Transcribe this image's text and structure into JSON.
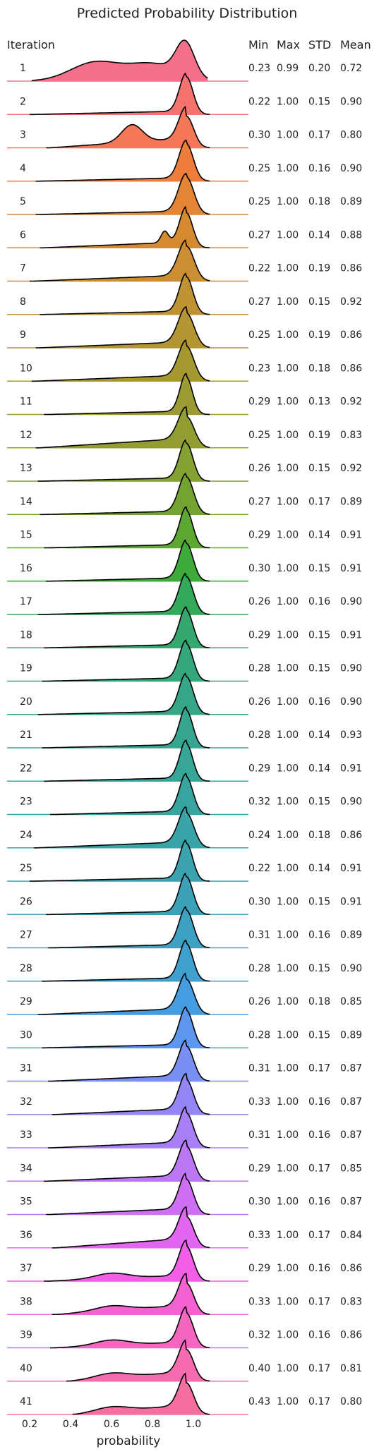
{
  "chart_data": {
    "type": "ridgeline",
    "title": "Predicted Probability Distribution",
    "xlabel": "probability",
    "xlim": [
      0.18,
      1.22
    ],
    "xticks": [
      "0.2",
      "0.4",
      "0.6",
      "0.8",
      "1.0"
    ],
    "xtick_values": [
      0.2,
      0.4,
      0.6,
      0.8,
      1.0
    ],
    "row_header": "Iteration",
    "stat_headers": [
      "Min",
      "Max",
      "STD",
      "Mean"
    ],
    "grid": false,
    "rows": [
      {
        "iteration": "1",
        "min": "0.23",
        "max": "0.99",
        "std": "0.20",
        "mean": "0.72",
        "color": "#f4708a"
      },
      {
        "iteration": "2",
        "min": "0.22",
        "max": "1.00",
        "std": "0.15",
        "mean": "0.90",
        "color": "#f5736f"
      },
      {
        "iteration": "3",
        "min": "0.30",
        "max": "1.00",
        "std": "0.17",
        "mean": "0.80",
        "color": "#f47758"
      },
      {
        "iteration": "4",
        "min": "0.25",
        "max": "1.00",
        "std": "0.16",
        "mean": "0.90",
        "color": "#ee7d3b"
      },
      {
        "iteration": "5",
        "min": "0.25",
        "max": "1.00",
        "std": "0.18",
        "mean": "0.89",
        "color": "#e38532"
      },
      {
        "iteration": "6",
        "min": "0.27",
        "max": "1.00",
        "std": "0.14",
        "mean": "0.88",
        "color": "#d68a30"
      },
      {
        "iteration": "7",
        "min": "0.22",
        "max": "1.00",
        "std": "0.19",
        "mean": "0.86",
        "color": "#cb8e32"
      },
      {
        "iteration": "8",
        "min": "0.27",
        "max": "1.00",
        "std": "0.15",
        "mean": "0.92",
        "color": "#bf9232"
      },
      {
        "iteration": "9",
        "min": "0.25",
        "max": "1.00",
        "std": "0.19",
        "mean": "0.86",
        "color": "#b39531"
      },
      {
        "iteration": "10",
        "min": "0.23",
        "max": "1.00",
        "std": "0.18",
        "mean": "0.86",
        "color": "#a69831"
      },
      {
        "iteration": "11",
        "min": "0.29",
        "max": "1.00",
        "std": "0.13",
        "mean": "0.92",
        "color": "#9c9b31"
      },
      {
        "iteration": "12",
        "min": "0.25",
        "max": "1.00",
        "std": "0.19",
        "mean": "0.83",
        "color": "#929e31"
      },
      {
        "iteration": "13",
        "min": "0.26",
        "max": "1.00",
        "std": "0.15",
        "mean": "0.92",
        "color": "#84a131"
      },
      {
        "iteration": "14",
        "min": "0.27",
        "max": "1.00",
        "std": "0.17",
        "mean": "0.89",
        "color": "#73a431"
      },
      {
        "iteration": "15",
        "min": "0.29",
        "max": "1.00",
        "std": "0.14",
        "mean": "0.91",
        "color": "#5ca732"
      },
      {
        "iteration": "16",
        "min": "0.30",
        "max": "1.00",
        "std": "0.15",
        "mean": "0.91",
        "color": "#3eaa3a"
      },
      {
        "iteration": "17",
        "min": "0.26",
        "max": "1.00",
        "std": "0.16",
        "mean": "0.90",
        "color": "#33a95b"
      },
      {
        "iteration": "18",
        "min": "0.29",
        "max": "1.00",
        "std": "0.15",
        "mean": "0.91",
        "color": "#34a86e"
      },
      {
        "iteration": "19",
        "min": "0.28",
        "max": "1.00",
        "std": "0.15",
        "mean": "0.90",
        "color": "#35a77c"
      },
      {
        "iteration": "20",
        "min": "0.26",
        "max": "1.00",
        "std": "0.16",
        "mean": "0.90",
        "color": "#35a687"
      },
      {
        "iteration": "21",
        "min": "0.28",
        "max": "1.00",
        "std": "0.14",
        "mean": "0.93",
        "color": "#36a590"
      },
      {
        "iteration": "22",
        "min": "0.29",
        "max": "1.00",
        "std": "0.14",
        "mean": "0.91",
        "color": "#37a598"
      },
      {
        "iteration": "23",
        "min": "0.32",
        "max": "1.00",
        "std": "0.15",
        "mean": "0.90",
        "color": "#38a49f"
      },
      {
        "iteration": "24",
        "min": "0.24",
        "max": "1.00",
        "std": "0.18",
        "mean": "0.86",
        "color": "#39a4a7"
      },
      {
        "iteration": "25",
        "min": "0.22",
        "max": "1.00",
        "std": "0.14",
        "mean": "0.91",
        "color": "#3aa3af"
      },
      {
        "iteration": "26",
        "min": "0.30",
        "max": "1.00",
        "std": "0.15",
        "mean": "0.91",
        "color": "#3ba2b8"
      },
      {
        "iteration": "27",
        "min": "0.31",
        "max": "1.00",
        "std": "0.16",
        "mean": "0.89",
        "color": "#3da1c2"
      },
      {
        "iteration": "28",
        "min": "0.28",
        "max": "1.00",
        "std": "0.15",
        "mean": "0.90",
        "color": "#3f9fcf"
      },
      {
        "iteration": "29",
        "min": "0.26",
        "max": "1.00",
        "std": "0.18",
        "mean": "0.85",
        "color": "#459ce0"
      },
      {
        "iteration": "30",
        "min": "0.28",
        "max": "1.00",
        "std": "0.15",
        "mean": "0.89",
        "color": "#5d96ef"
      },
      {
        "iteration": "31",
        "min": "0.31",
        "max": "1.00",
        "std": "0.17",
        "mean": "0.87",
        "color": "#7a8ef3"
      },
      {
        "iteration": "32",
        "min": "0.33",
        "max": "1.00",
        "std": "0.16",
        "mean": "0.87",
        "color": "#9386f4"
      },
      {
        "iteration": "33",
        "min": "0.31",
        "max": "1.00",
        "std": "0.16",
        "mean": "0.87",
        "color": "#a87ff4"
      },
      {
        "iteration": "34",
        "min": "0.29",
        "max": "1.00",
        "std": "0.17",
        "mean": "0.85",
        "color": "#bb77f4"
      },
      {
        "iteration": "35",
        "min": "0.30",
        "max": "1.00",
        "std": "0.16",
        "mean": "0.87",
        "color": "#cf6ff3"
      },
      {
        "iteration": "36",
        "min": "0.33",
        "max": "1.00",
        "std": "0.17",
        "mean": "0.84",
        "color": "#e266ef"
      },
      {
        "iteration": "37",
        "min": "0.29",
        "max": "1.00",
        "std": "0.16",
        "mean": "0.86",
        "color": "#f25fe6"
      },
      {
        "iteration": "38",
        "min": "0.33",
        "max": "1.00",
        "std": "0.17",
        "mean": "0.83",
        "color": "#f462d2"
      },
      {
        "iteration": "39",
        "min": "0.32",
        "max": "1.00",
        "std": "0.16",
        "mean": "0.86",
        "color": "#f566c0"
      },
      {
        "iteration": "40",
        "min": "0.40",
        "max": "1.00",
        "std": "0.17",
        "mean": "0.81",
        "color": "#f56bb0"
      },
      {
        "iteration": "41",
        "min": "0.43",
        "max": "1.00",
        "std": "0.17",
        "mean": "0.80",
        "color": "#f56ea0"
      }
    ]
  }
}
